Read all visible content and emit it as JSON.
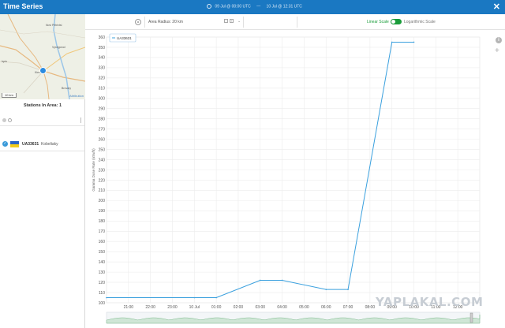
{
  "window": {
    "title": "Time Series",
    "range_start": "09 Jul @ 00:00 UTC",
    "range_separator": "—",
    "range_end": "10 Jul @ 12:31 UTC",
    "close_label": "✕"
  },
  "map": {
    "towns": [
      "Novi Petrivtsi",
      "Vyshgorod",
      "Brovary",
      "Irpin",
      "Kiev"
    ],
    "scale_label": "10 km",
    "attribution": "Attribution"
  },
  "sidebar": {
    "stations_title": "Stations In Area: 1",
    "stations": [
      {
        "code": "UA33631",
        "name": "Kobeliaky",
        "checked": true,
        "flag": "ukraine"
      }
    ]
  },
  "toolbar": {
    "radius_label": "Area Radius: 20 km",
    "linear_label": "Linear Scale",
    "log_label": "Logarithmic Scale",
    "scale_toggle_on": true
  },
  "colors": {
    "accent": "#1a78c2",
    "line": "#3aa0de",
    "toggle_on": "#1a9c3a"
  },
  "watermark": "YAPLAKAL.COM",
  "chart_data": {
    "type": "line",
    "ylabel": "Gamma Dose Rate (nSv/h)",
    "xlabel": "",
    "ylim": [
      100,
      360
    ],
    "yticks": [
      100,
      110,
      120,
      130,
      140,
      150,
      160,
      170,
      180,
      190,
      200,
      210,
      220,
      230,
      240,
      250,
      260,
      270,
      280,
      290,
      300,
      310,
      320,
      330,
      340,
      350,
      360
    ],
    "xticks": [
      "21:00",
      "22:00",
      "23:00",
      "10 Jul",
      "01:00",
      "02:00",
      "03:00",
      "04:00",
      "05:00",
      "06:00",
      "07:00",
      "08:00",
      "09:00",
      "10:00",
      "11:00",
      "12:00"
    ],
    "legend": [
      "UA33631"
    ],
    "grid": true,
    "series": [
      {
        "name": "UA33631",
        "x": [
          "20:00",
          "00:00",
          "01:00",
          "03:00",
          "04:00",
          "06:00",
          "07:00",
          "09:00",
          "10:00"
        ],
        "values": [
          105,
          105,
          105,
          122,
          122,
          113,
          113,
          355,
          355
        ]
      }
    ]
  }
}
